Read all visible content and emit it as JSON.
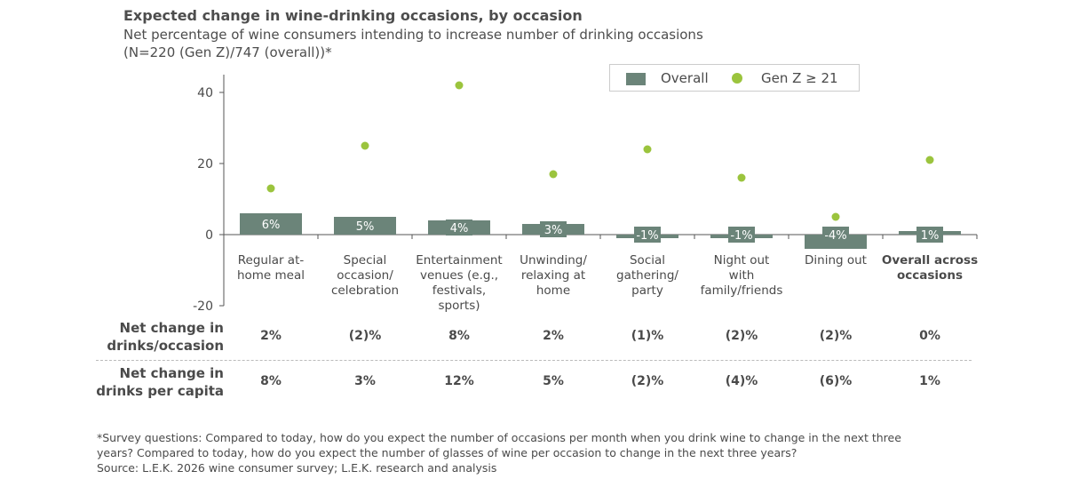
{
  "title": "Expected change in wine-drinking occasions, by occasion",
  "subtitle": "Net percentage of wine consumers intending to increase number of drinking occasions",
  "subtitle2": "(N=220 (Gen Z)/747 (overall))*",
  "colors": {
    "overall": "#6b8479",
    "genz": "#9bc43d"
  },
  "chart_data": {
    "type": "bar",
    "categories": [
      "Regular at-\nhome meal",
      "Special\noccasion/\ncelebration",
      "Entertainment\nvenues (e.g.,\nfestivals,\nsports)",
      "Unwinding/\nrelaxing at\nhome",
      "Social\ngathering/\nparty",
      "Night out\nwith\nfamily/friends",
      "Dining out",
      "Overall across\noccasions"
    ],
    "series": [
      {
        "name": "Overall",
        "type": "bar",
        "values": [
          6,
          5,
          4,
          3,
          -1,
          -1,
          -4,
          1
        ],
        "labels": [
          "6%",
          "5%",
          "4%",
          "3%",
          "-1%",
          "-1%",
          "-4%",
          "1%"
        ]
      },
      {
        "name": "Gen Z ≥ 21",
        "type": "scatter",
        "values": [
          13,
          25,
          42,
          17,
          24,
          16,
          5,
          21
        ]
      }
    ],
    "ylim": [
      -20,
      45
    ],
    "yticks": [
      "40",
      "20",
      "0",
      "-20"
    ],
    "legend": "top-right",
    "grid": false
  },
  "table": {
    "rows": [
      {
        "label": "Net change in\ndrinks/occasion",
        "values": [
          "2%",
          "(2)%",
          "8%",
          "2%",
          "(1)%",
          "(2)%",
          "(2)%",
          "0%"
        ]
      },
      {
        "label": "Net change in\ndrinks per capita",
        "values": [
          "8%",
          "3%",
          "12%",
          "5%",
          "(2)%",
          "(4)%",
          "(6)%",
          "1%"
        ]
      }
    ]
  },
  "footnote": {
    "line1": "*Survey questions: Compared to today, how do you expect the number of occasions per month when you drink wine to change in the next three",
    "line2": "years? Compared to today, how do you expect the number of glasses of wine per occasion to change in the next three years?",
    "source": "Source: L.E.K. 2026 wine consumer survey; L.E.K. research and analysis"
  }
}
